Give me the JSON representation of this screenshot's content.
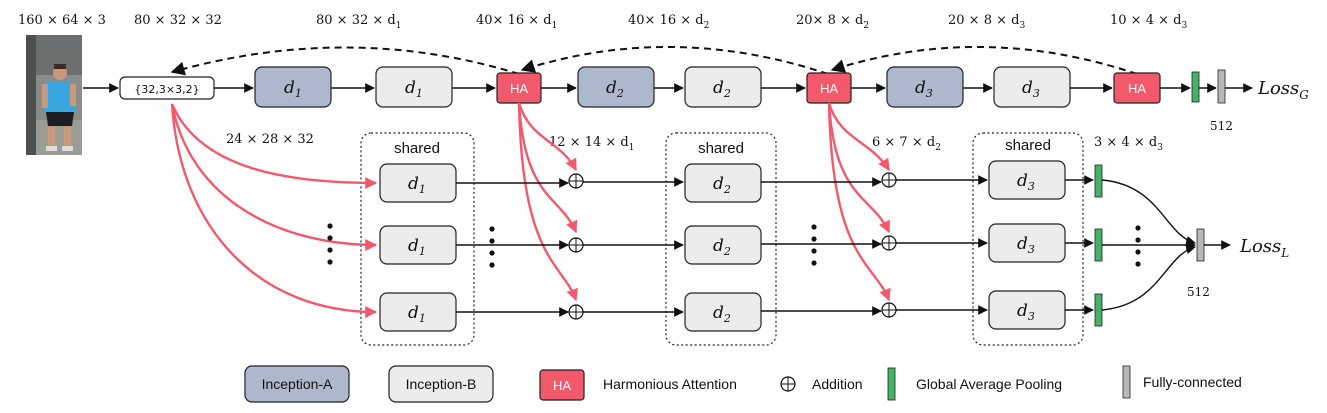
{
  "dims_top": {
    "input": "160 × 64 × 3",
    "stem": "80 × 32 × 32",
    "stage1": "80 × 32 × d",
    "stage1_sub": "1",
    "ha1": "40× 16 × d",
    "ha1_sub": "1",
    "stage2": "40× 16 × d",
    "stage2_sub": "2",
    "ha2": "20× 8 × d",
    "ha2_sub": "2",
    "stage3": "20 × 8 × d",
    "stage3_sub": "3",
    "ha3": "10 × 4 × d",
    "ha3_sub": "3"
  },
  "dims_local": {
    "crop": "24 × 28 × 32",
    "l1": "12 × 14 × d",
    "l1_sub": "1",
    "l2": "6 × 7 × d",
    "l2_sub": "2",
    "l3": "3 × 4 × d",
    "l3_sub": "3"
  },
  "stem_label": "{32,3×3,2}",
  "block_var": "d",
  "subs": {
    "one": "1",
    "two": "2",
    "three": "3"
  },
  "ha_label": "HA",
  "shared_label": "shared",
  "loss_global": {
    "text": "Loss",
    "sub": "G"
  },
  "loss_local": {
    "text": "Loss",
    "sub": "L"
  },
  "fc_dim_global": "512",
  "fc_dim_local": "512",
  "legend": {
    "inception_a": "Inception-A",
    "inception_b": "Inception-B",
    "ha": "HA",
    "ha_text": "Harmonious Attention",
    "addition": "Addition",
    "gap": "Global Average Pooling",
    "fc": "Fully-connected"
  },
  "colors": {
    "inception_a": "#aeb8cc",
    "inception_b": "#ececec",
    "ha": "#f25a6c",
    "gap": "#44b36a",
    "fc": "#b8b8b8",
    "attention_path": "#f05a6c"
  }
}
